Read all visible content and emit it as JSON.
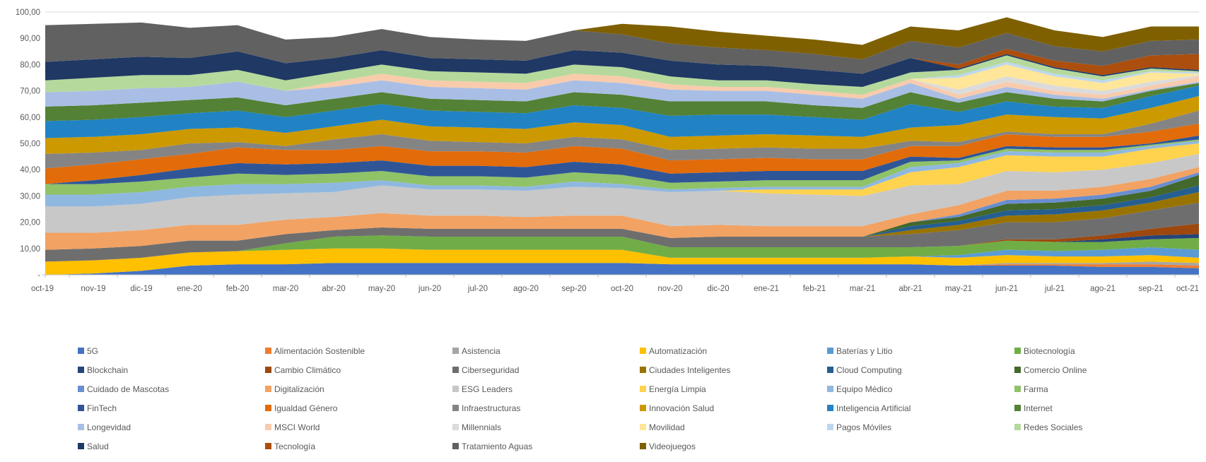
{
  "colors": {
    "background": "#FFFFFF",
    "axis_line": "#BFBFBF",
    "gridline": "#D9D9D9",
    "axis_text": "#595959",
    "legend_text": "#595959"
  },
  "chart_data": {
    "type": "area",
    "stacked": true,
    "title": "",
    "xlabel": "",
    "ylabel": "",
    "ylim": [
      0,
      100
    ],
    "y_tick_step": 10,
    "y_tick_labels": [
      "-",
      "10,00",
      "20,00",
      "30,00",
      "40,00",
      "50,00",
      "60,00",
      "70,00",
      "80,00",
      "90,00",
      "100,00"
    ],
    "grid": "top-line-only",
    "legend_position": "bottom",
    "legend_columns": 6,
    "x": [
      "oct-19",
      "nov-19",
      "dic-19",
      "ene-20",
      "feb-20",
      "mar-20",
      "abr-20",
      "may-20",
      "jun-20",
      "jul-20",
      "ago-20",
      "sep-20",
      "oct-20",
      "nov-20",
      "dic-20",
      "ene-21",
      "feb-21",
      "mar-21",
      "abr-21",
      "may-21",
      "jun-21",
      "jul-21",
      "ago-21",
      "sep-21",
      "oct-21"
    ],
    "series": [
      {
        "name": "5G",
        "color": "#4472C4",
        "values": [
          0,
          0.5,
          1.5,
          3.5,
          4,
          4,
          4.5,
          4.5,
          4.5,
          4.5,
          4.5,
          4.5,
          4.5,
          4,
          4,
          4,
          4,
          4,
          4,
          3.5,
          3.5,
          3.5,
          3,
          3,
          2.5
        ]
      },
      {
        "name": "Alimentación Sostenible",
        "color": "#ED7D31",
        "values": [
          0,
          0,
          0,
          0,
          0,
          0,
          0,
          0,
          0,
          0,
          0,
          0,
          0,
          0,
          0,
          0,
          0,
          0,
          0,
          0,
          0.5,
          0.5,
          1,
          1,
          1
        ]
      },
      {
        "name": "Asistencia",
        "color": "#A5A5A5",
        "values": [
          0,
          0,
          0,
          0,
          0,
          0,
          0,
          0,
          0,
          0,
          0,
          0,
          0,
          0,
          0,
          0,
          0,
          0,
          0,
          0,
          0.5,
          0.5,
          0.5,
          1,
          1
        ]
      },
      {
        "name": "Automatización",
        "color": "#FFC000",
        "values": [
          5,
          5,
          5,
          5,
          5,
          5.5,
          5.5,
          5.5,
          5,
          5,
          5,
          5,
          5,
          2.5,
          2.5,
          2.5,
          2.5,
          2.5,
          3,
          3,
          3,
          2.5,
          2.5,
          2.5,
          2
        ]
      },
      {
        "name": "Baterías y Litio",
        "color": "#5B9BD5",
        "values": [
          0,
          0,
          0,
          0,
          0,
          0,
          0,
          0,
          0,
          0,
          0,
          0,
          0,
          0,
          0,
          0,
          0,
          0,
          0,
          1,
          2,
          2,
          2.5,
          3,
          3
        ]
      },
      {
        "name": "Biotecnología",
        "color": "#70AD47",
        "values": [
          0,
          0,
          0,
          0,
          0,
          2.5,
          4.5,
          5,
          5,
          5,
          5,
          5,
          5,
          4,
          4,
          4,
          4,
          4,
          3.5,
          3.5,
          3.5,
          3.5,
          3,
          3,
          4.5
        ]
      },
      {
        "name": "Blockchain",
        "color": "#264478",
        "values": [
          0,
          0,
          0,
          0,
          0,
          0,
          0,
          0,
          0,
          0,
          0,
          0,
          0,
          0,
          0,
          0,
          0,
          0,
          0,
          0,
          0,
          0,
          1,
          1.5,
          1.5
        ]
      },
      {
        "name": "Cambio Climático",
        "color": "#9E480E",
        "values": [
          0,
          0,
          0,
          0,
          0,
          0,
          0,
          0,
          0,
          0,
          0,
          0,
          0,
          0,
          0,
          0,
          0,
          0,
          0,
          0,
          0.5,
          1,
          1.5,
          2.5,
          4
        ]
      },
      {
        "name": "Ciberseguridad",
        "color": "#6E6E6E",
        "values": [
          4.5,
          4.5,
          4.5,
          4.5,
          4,
          3.5,
          2.5,
          3,
          3,
          3,
          3,
          3,
          3,
          3.5,
          4,
          4,
          4,
          4,
          5,
          6,
          6.5,
          6.5,
          6.5,
          7,
          8
        ]
      },
      {
        "name": "Ciudades Inteligentes",
        "color": "#997300",
        "values": [
          0,
          0,
          0,
          0,
          0,
          0,
          0,
          0,
          0,
          0,
          0,
          0,
          0,
          0,
          0,
          0,
          0,
          0,
          1.5,
          2,
          2.5,
          3,
          3,
          3,
          4
        ]
      },
      {
        "name": "Cloud Computing",
        "color": "#255E91",
        "values": [
          0,
          0,
          0,
          0,
          0,
          0,
          0,
          0,
          0,
          0,
          0,
          0,
          0,
          0,
          0,
          0,
          0,
          0,
          1.5,
          1.5,
          2,
          2,
          2,
          2,
          2.5
        ]
      },
      {
        "name": "Comercio Online",
        "color": "#43682B",
        "values": [
          0,
          0,
          0,
          0,
          0,
          0,
          0,
          0,
          0,
          0,
          0,
          0,
          0,
          0,
          0,
          0,
          0,
          0,
          1.5,
          1.5,
          2.5,
          2.5,
          2.5,
          2.5,
          4
        ]
      },
      {
        "name": "Cuidado de Mascotas",
        "color": "#698ED0",
        "values": [
          0,
          0,
          0,
          0,
          0,
          0,
          0,
          0,
          0,
          0,
          0,
          0,
          0,
          0,
          0,
          0,
          0,
          0,
          0,
          1,
          1.5,
          1.5,
          1.5,
          1.5,
          1
        ]
      },
      {
        "name": "Digitalización",
        "color": "#F2A263",
        "values": [
          6.5,
          6,
          6,
          6,
          6,
          5.5,
          5,
          5.5,
          5,
          5,
          4.5,
          5,
          5,
          4.5,
          4.5,
          4,
          4,
          4,
          3,
          3.5,
          3.5,
          3,
          3,
          3,
          2
        ]
      },
      {
        "name": "ESG Leaders",
        "color": "#C8C8C8",
        "values": [
          10,
          10,
          10,
          10.5,
          11.5,
          10,
          9.5,
          10.5,
          10,
          10,
          10,
          11,
          10.5,
          13,
          13,
          12.5,
          12,
          11.5,
          11,
          8,
          7.5,
          7,
          6.5,
          6,
          5
        ]
      },
      {
        "name": "Energía Limpia",
        "color": "#FFD34D",
        "values": [
          0,
          0,
          0,
          0,
          0,
          0,
          0,
          0,
          0,
          0,
          0,
          0,
          0,
          0,
          0,
          1.5,
          2,
          2.5,
          5,
          6.5,
          6,
          6,
          5,
          5.5,
          4
        ]
      },
      {
        "name": "Equipo Médico",
        "color": "#8FB8E0",
        "values": [
          4.5,
          4.5,
          4.5,
          4,
          4,
          3.5,
          3.5,
          2,
          1.5,
          1.5,
          1.5,
          2,
          1.5,
          1,
          1,
          1,
          1,
          1,
          2,
          1.5,
          1.5,
          1.5,
          1.5,
          1,
          1
        ]
      },
      {
        "name": "Farma",
        "color": "#90C268",
        "values": [
          4,
          4,
          4,
          3.5,
          4,
          3.5,
          3.5,
          3.5,
          3.5,
          3.5,
          3.5,
          3.5,
          3.5,
          2.5,
          2.5,
          2.5,
          2.5,
          2.5,
          2,
          1,
          1,
          1,
          1,
          0.5,
          0.5
        ]
      },
      {
        "name": "FinTech",
        "color": "#2F5597",
        "values": [
          0,
          1.5,
          2.5,
          3.5,
          4,
          4,
          4,
          4,
          4,
          4,
          4,
          4,
          4,
          3.5,
          3.5,
          3.5,
          3.5,
          3.5,
          2,
          1,
          1,
          1,
          1,
          0.5,
          1.5
        ]
      },
      {
        "name": "Igualdad Género",
        "color": "#E26B0A",
        "values": [
          6,
          6,
          6,
          5.5,
          6,
          5.5,
          5,
          5.5,
          5.5,
          5.5,
          5.5,
          6,
          6,
          5,
          5,
          5,
          4.5,
          4.5,
          4,
          4.5,
          4.5,
          4,
          4,
          4.5,
          4.5
        ]
      },
      {
        "name": "Infraestructuras",
        "color": "#848484",
        "values": [
          5.5,
          4.5,
          3.5,
          4,
          2,
          1.5,
          4,
          4.5,
          4,
          3.5,
          3.5,
          3.5,
          3.5,
          4,
          4,
          4,
          4,
          4,
          2,
          1.5,
          1,
          1,
          1,
          3,
          5
        ]
      },
      {
        "name": "Innovación Salud",
        "color": "#CC9900",
        "values": [
          6,
          6,
          6,
          5.5,
          5.5,
          5,
          5,
          5.5,
          5.5,
          5.5,
          5.5,
          5.5,
          5.5,
          5,
          5,
          5,
          5,
          4.5,
          5,
          6.5,
          6.5,
          6.5,
          6,
          6,
          5.5
        ]
      },
      {
        "name": "Inteligencia Artificial",
        "color": "#2183C4",
        "values": [
          6.5,
          6.5,
          6.5,
          6,
          6.5,
          6,
          6,
          6,
          6,
          6,
          6,
          6.5,
          6.5,
          8,
          8,
          7.5,
          7,
          6.5,
          9,
          5,
          5,
          4,
          4,
          4.5,
          4
        ]
      },
      {
        "name": "Internet",
        "color": "#538135",
        "values": [
          5.5,
          5.5,
          5.5,
          5,
          5,
          4.5,
          4.5,
          4.5,
          4.5,
          4.5,
          4.5,
          5,
          5,
          5.5,
          5,
          5,
          4.5,
          4.5,
          4.5,
          3.5,
          3.5,
          3,
          2.5,
          2,
          1
        ]
      },
      {
        "name": "Longevidad",
        "color": "#A9BEE4",
        "values": [
          5.5,
          5.5,
          5.5,
          5,
          6,
          5.5,
          4.5,
          4.5,
          4.5,
          4.5,
          4.5,
          4.5,
          4.5,
          4.5,
          4,
          4,
          4,
          3.5,
          3.5,
          1.5,
          2,
          1.5,
          1,
          0.5,
          0.5
        ]
      },
      {
        "name": "MSCI World",
        "color": "#F8CBAD",
        "values": [
          0,
          0,
          0,
          0,
          0,
          0,
          2,
          2.5,
          2.5,
          2.5,
          2.5,
          2.5,
          2.5,
          2,
          1.5,
          1.5,
          1.5,
          1.5,
          1.5,
          1.5,
          2,
          1.5,
          1.5,
          1.5,
          2
        ]
      },
      {
        "name": "Millennials",
        "color": "#DBDBDB",
        "values": [
          0,
          0,
          0,
          0,
          0,
          0,
          0,
          0,
          0,
          0,
          0,
          0,
          0,
          0,
          0,
          0,
          0,
          0,
          0,
          2,
          2,
          2,
          1.5,
          1.5,
          0.5
        ]
      },
      {
        "name": "Movilidad",
        "color": "#FFE699",
        "values": [
          0,
          0,
          0,
          0,
          0,
          0,
          0,
          0,
          0,
          0,
          0,
          0,
          0,
          0,
          0,
          0,
          0,
          0,
          0,
          4.5,
          4.5,
          3.5,
          3,
          3.5,
          0.5
        ]
      },
      {
        "name": "Pagos Móviles",
        "color": "#BDD7EE",
        "values": [
          0,
          0,
          0,
          0,
          0,
          0,
          0,
          0,
          0,
          0,
          0,
          0,
          0,
          0,
          0,
          0,
          0,
          0,
          0,
          1,
          1,
          1,
          1,
          0.5,
          0.5
        ]
      },
      {
        "name": "Redes Sociales",
        "color": "#B5D99C",
        "values": [
          4.5,
          5,
          5,
          4.5,
          4.5,
          4,
          3.5,
          3.5,
          3.5,
          3.5,
          3.5,
          3.5,
          3.5,
          3,
          2.5,
          2.5,
          2.5,
          3,
          2.5,
          2,
          2.5,
          2,
          1.5,
          1,
          0.5
        ]
      },
      {
        "name": "Salud",
        "color": "#1F3864",
        "values": [
          7,
          7,
          7,
          6.5,
          7,
          6.5,
          5.5,
          5.5,
          5,
          5,
          5,
          5.5,
          5.5,
          6,
          6,
          5.5,
          5.5,
          5,
          5.5,
          0.5,
          0.5,
          0.5,
          0.5,
          0.5,
          0.5
        ]
      },
      {
        "name": "Tecnología",
        "color": "#AC4E0D",
        "values": [
          0,
          0,
          0,
          0,
          0,
          0,
          0,
          0,
          0,
          0,
          0,
          0,
          0,
          0,
          0,
          0,
          0,
          0,
          0,
          1.5,
          2,
          2.5,
          3.5,
          4.5,
          6
        ]
      },
      {
        "name": "Tratamiento Aguas",
        "color": "#616161",
        "values": [
          14,
          13.5,
          13,
          11.5,
          10,
          9,
          8,
          8,
          8,
          7.5,
          7.5,
          7.5,
          7,
          6.5,
          6.5,
          6,
          6,
          5.5,
          6.5,
          6.5,
          6,
          5.5,
          5.5,
          5.5,
          5.5
        ]
      },
      {
        "name": "Videojuegos",
        "color": "#7F6000",
        "values": [
          0,
          0,
          0,
          0,
          0,
          0,
          0,
          0,
          0,
          0,
          0,
          0,
          4,
          6.5,
          6,
          5.5,
          5.5,
          5.5,
          5.5,
          6.5,
          6,
          6,
          5.5,
          5.5,
          5
        ]
      }
    ]
  }
}
